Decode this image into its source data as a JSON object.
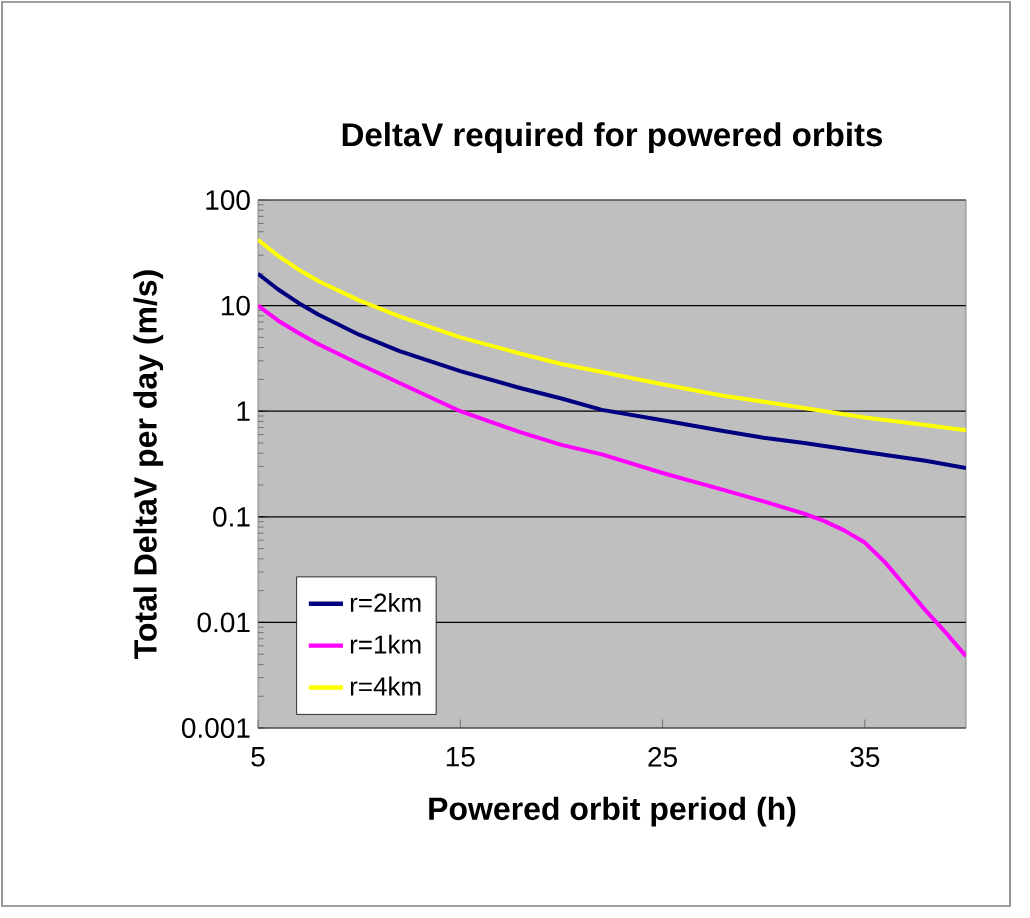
{
  "chart_data": {
    "type": "line",
    "title": "DeltaV required for powered orbits",
    "xlabel": "Powered orbit period (h)",
    "ylabel": "Total DeltaV per day (m/s)",
    "xlim": [
      5,
      40
    ],
    "xticks": [
      5,
      15,
      25,
      35
    ],
    "ylim": [
      0.001,
      100
    ],
    "yticks": [
      0.001,
      0.01,
      0.1,
      1,
      10,
      100
    ],
    "log": "y",
    "grid": "y",
    "legend": "bottom left",
    "marker": "none",
    "line_style": "solid",
    "series": [
      {
        "name": "r=2km",
        "color": "#000080",
        "x": [
          5,
          6,
          7,
          8,
          10,
          12,
          15,
          18,
          20,
          22,
          25,
          28,
          30,
          32,
          35,
          38,
          40
        ],
        "values": [
          20,
          14.2,
          10.6,
          8.2,
          5.3,
          3.7,
          2.4,
          1.65,
          1.32,
          1.03,
          0.82,
          0.65,
          0.56,
          0.5,
          0.41,
          0.34,
          0.29
        ]
      },
      {
        "name": "r=1km",
        "color": "#ff00ff",
        "x": [
          5,
          6,
          7,
          8,
          10,
          12,
          15,
          18,
          20,
          22,
          25,
          28,
          30,
          32,
          33,
          34,
          35,
          36,
          37,
          38,
          39,
          40
        ],
        "values": [
          10,
          7.2,
          5.5,
          4.3,
          2.8,
          1.85,
          1.0,
          0.63,
          0.48,
          0.39,
          0.26,
          0.18,
          0.14,
          0.107,
          0.091,
          0.074,
          0.057,
          0.037,
          0.022,
          0.013,
          0.008,
          0.0048
        ]
      },
      {
        "name": "r=4km",
        "color": "#ffff00",
        "x": [
          5,
          6,
          7,
          8,
          10,
          12,
          15,
          18,
          20,
          22,
          25,
          28,
          30,
          32,
          35,
          38,
          40
        ],
        "values": [
          42,
          29.5,
          22,
          17,
          11.2,
          7.9,
          5.0,
          3.5,
          2.8,
          2.35,
          1.8,
          1.4,
          1.23,
          1.07,
          0.87,
          0.74,
          0.66
        ]
      }
    ]
  }
}
